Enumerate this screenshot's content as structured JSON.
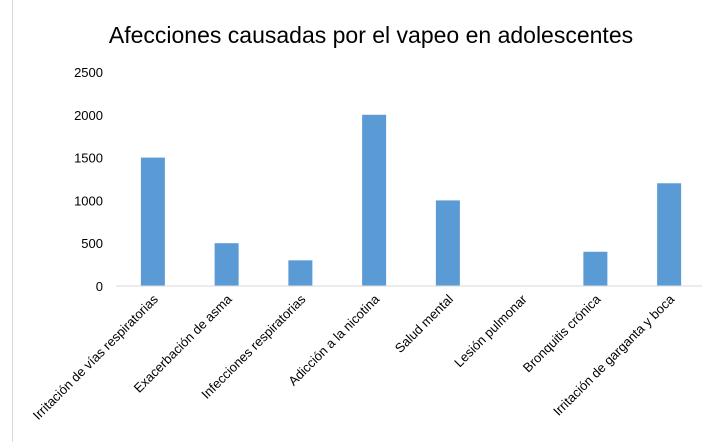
{
  "chart_data": {
    "type": "bar",
    "title": "Afecciones causadas por el vapeo en adolescentes",
    "xlabel": "",
    "ylabel": "",
    "categories": [
      "Irritación de vías respiratorias",
      "Exacerbación de asma",
      "Infecciones respiratorias",
      "Adicción a la nicotina",
      "Salud mental",
      "Lesión pulmonar",
      "Bronquitis crónica",
      "Irritación de garganta y boca"
    ],
    "values": [
      1500,
      500,
      300,
      2000,
      1000,
      0,
      400,
      1200
    ],
    "ylim": [
      0,
      2500
    ],
    "yticks": [
      0,
      500,
      1000,
      1500,
      2000,
      2500
    ],
    "bar_color": "#5b9bd5",
    "grid": false,
    "legend": "none"
  }
}
